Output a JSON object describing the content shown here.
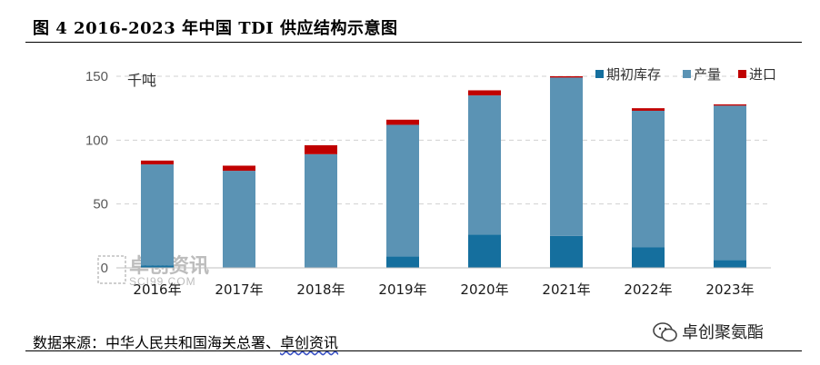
{
  "figure": {
    "title": "图 4 2016-2023 年中国 TDI 供应结构示意图",
    "source_label": "数据来源：",
    "source_body": "中华人民共和国海关总署、",
    "source_highlight": "卓创资讯"
  },
  "watermark": {
    "text": "卓创资讯",
    "sub": "SCI99.COM"
  },
  "brand": {
    "text": "卓创聚氨酯",
    "icon": "wechat-icon"
  },
  "chart_data": {
    "type": "bar",
    "stacked": true,
    "unit": "千吨",
    "categories": [
      "2016年",
      "2017年",
      "2018年",
      "2019年",
      "2020年",
      "2021年",
      "2022年",
      "2023年"
    ],
    "series": [
      {
        "name": "期初库存",
        "color": "#156f9e",
        "values": [
          2,
          0,
          0,
          9,
          26,
          25,
          16,
          6
        ]
      },
      {
        "name": "产量",
        "color": "#5b93b4",
        "values": [
          79,
          76,
          89,
          103,
          109,
          124,
          107,
          121
        ]
      },
      {
        "name": "进口",
        "color": "#c00000",
        "values": [
          3,
          4,
          7,
          4,
          4,
          1,
          2,
          1
        ]
      }
    ],
    "ylim": [
      0,
      150
    ],
    "yticks": [
      0,
      50,
      100,
      150
    ],
    "grid": true,
    "legend_position": "top-right"
  }
}
